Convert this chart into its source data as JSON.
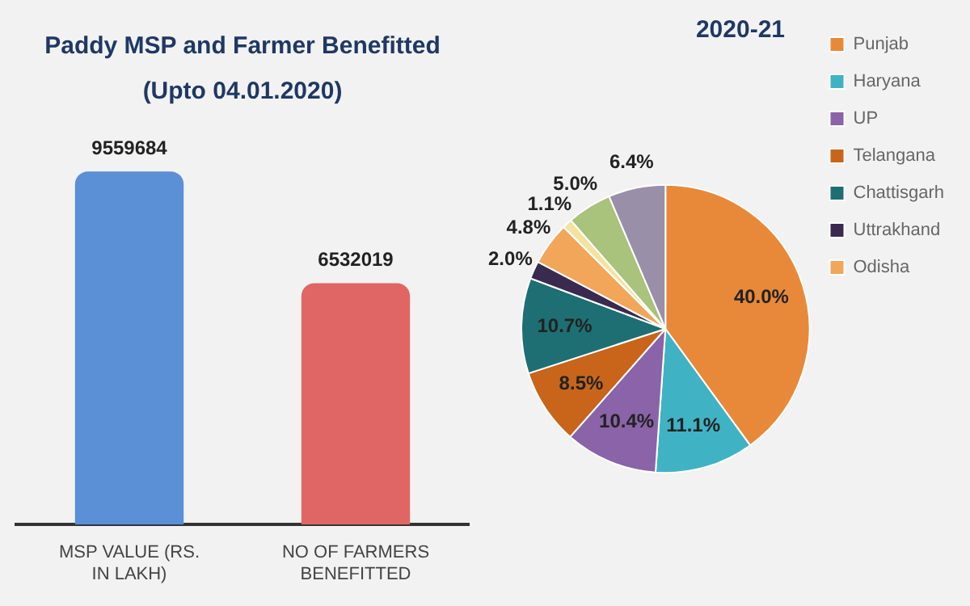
{
  "chart_data": [
    {
      "type": "bar",
      "title": "Paddy MSP and Farmer Benefitted",
      "subtitle": "(Upto 04.01.2020)",
      "categories": [
        "MSP VALUE (RS. IN LAKH)",
        "NO OF FARMERS BENEFITTED"
      ],
      "values": [
        9559684,
        6532019
      ],
      "colors": [
        "#5b8fd6",
        "#e06666"
      ],
      "data_labels": true,
      "grid": false,
      "legend": false
    },
    {
      "type": "pie",
      "title": "2020-21",
      "categories": [
        "Punjab",
        "Haryana",
        "UP",
        "Telangana",
        "Chattisgarh",
        "Uttrakhand",
        "Odisha",
        null,
        null,
        null
      ],
      "values": [
        40.0,
        11.1,
        10.4,
        8.5,
        10.7,
        2.0,
        4.8,
        1.1,
        5.0,
        6.4
      ],
      "colors": [
        "#e8893a",
        "#3fb3c4",
        "#8a63a8",
        "#c8651a",
        "#1e6f73",
        "#3b2a4f",
        "#f2a65a",
        "#f4e3a0",
        "#a9c27c",
        "#9a8fa8"
      ],
      "value_labels": [
        "40.0%",
        "11.1%",
        "10.4%",
        "8.5%",
        "10.7%",
        "2.0%",
        "4.8%",
        "1.1%",
        "5.0%",
        "6.4%"
      ],
      "legend": "right"
    }
  ]
}
